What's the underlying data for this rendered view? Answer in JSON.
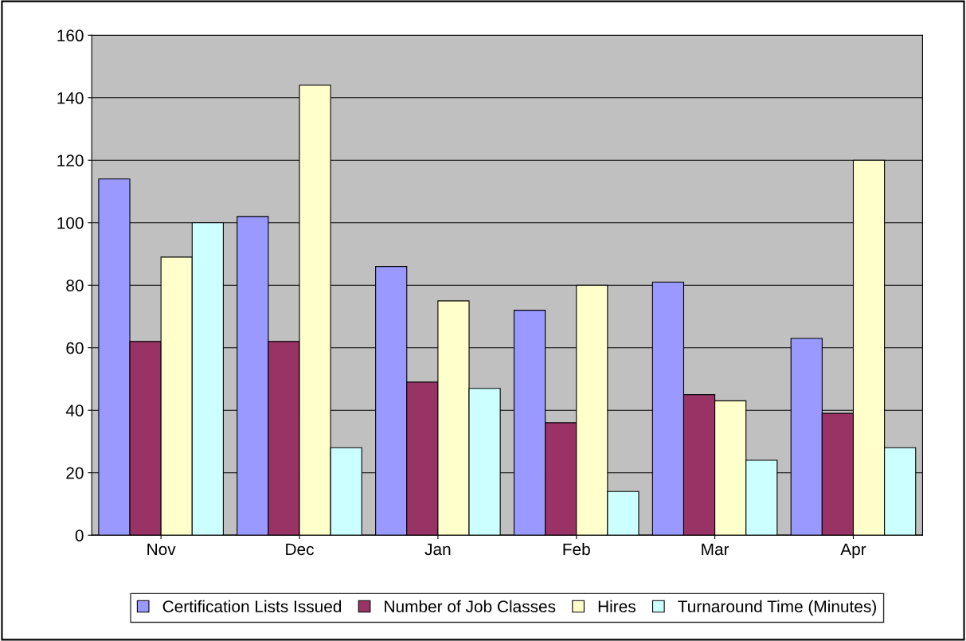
{
  "chart_data": {
    "type": "bar",
    "categories": [
      "Nov",
      "Dec",
      "Jan",
      "Feb",
      "Mar",
      "Apr"
    ],
    "series": [
      {
        "name": "Certification Lists Issued",
        "color": "#9999ff",
        "values": [
          114,
          102,
          86,
          72,
          81,
          63
        ]
      },
      {
        "name": "Number of Job Classes",
        "color": "#993366",
        "values": [
          62,
          62,
          49,
          36,
          45,
          39
        ]
      },
      {
        "name": "Hires",
        "color": "#ffffcc",
        "values": [
          89,
          144,
          75,
          80,
          43,
          120
        ]
      },
      {
        "name": "Turnaround Time (Minutes)",
        "color": "#ccffff",
        "values": [
          100,
          28,
          47,
          14,
          24,
          28
        ]
      }
    ],
    "ylim": [
      0,
      160
    ],
    "yticks": [
      0,
      20,
      40,
      60,
      80,
      100,
      120,
      140,
      160
    ],
    "grid": "y",
    "legend": "bottom"
  }
}
